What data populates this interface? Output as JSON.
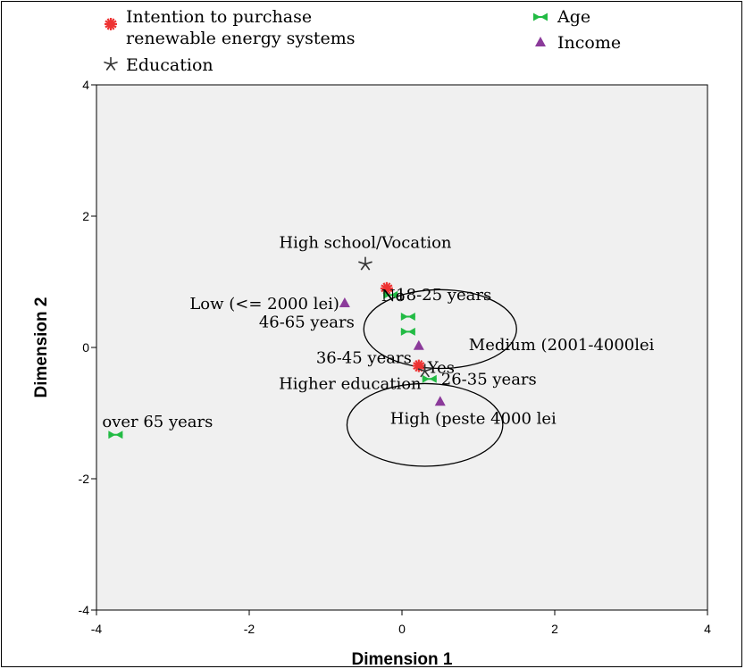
{
  "chart_data": {
    "type": "scatter",
    "title": "",
    "xlabel": "Dimension 1",
    "ylabel": "Dimension 2",
    "xlim": [
      -4,
      4
    ],
    "ylim": [
      -4,
      4
    ],
    "xticks": [
      "-4",
      "-2",
      "0",
      "2",
      "4"
    ],
    "yticks": [
      "4",
      "2",
      "0",
      "-2",
      "-4"
    ],
    "xtick_values": [
      -4,
      -2,
      0,
      2,
      4
    ],
    "ytick_values": [
      4,
      2,
      0,
      -2,
      -4
    ],
    "legend_placement": "top",
    "series": [
      {
        "name": "Intention to purchase renewable energy systems",
        "legend_lines": [
          "Intention to purchase",
          "renewable energy systems"
        ],
        "marker": "asterisk",
        "color": "#ee3333",
        "points": [
          {
            "label": "No",
            "x": -0.2,
            "y": 0.9
          },
          {
            "label": "Yes",
            "x": 0.22,
            "y": -0.28
          }
        ]
      },
      {
        "name": "Education",
        "legend_lines": [
          "Education"
        ],
        "marker": "star",
        "color": "#333333",
        "points": [
          {
            "label": "High school/Vocation",
            "x": -0.48,
            "y": 1.27
          },
          {
            "label": "Higher education",
            "x": 0.3,
            "y": -0.36
          }
        ]
      },
      {
        "name": "Age",
        "legend_lines": [
          "Age"
        ],
        "marker": "bowtie",
        "color": "#22bb44",
        "points": [
          {
            "label": "18-25 years",
            "x": -0.15,
            "y": 0.8
          },
          {
            "label": "46-65 years",
            "x": 0.08,
            "y": 0.47
          },
          {
            "label": "36-45 years",
            "x": 0.08,
            "y": 0.24
          },
          {
            "label": "26-35 years",
            "x": 0.36,
            "y": -0.48
          },
          {
            "label": "over 65 years",
            "x": -3.75,
            "y": -1.33
          }
        ]
      },
      {
        "name": "Income",
        "legend_lines": [
          "Income"
        ],
        "marker": "triangle",
        "color": "#8b3a9a",
        "points": [
          {
            "label": "Low (<= 2000 lei)",
            "x": -0.75,
            "y": 0.68
          },
          {
            "label": "Medium (2001-4000lei",
            "x": 0.22,
            "y": 0.03
          },
          {
            "label": "High (peste 4000 lei",
            "x": 0.5,
            "y": -0.82
          }
        ]
      }
    ],
    "annotations": [
      {
        "shape": "ellipse",
        "cx": 0.5,
        "cy": 0.28,
        "rx": 1.0,
        "ry": 0.6
      },
      {
        "shape": "ellipse",
        "cx": 0.3,
        "cy": -1.18,
        "rx": 1.02,
        "ry": 0.63
      }
    ]
  }
}
